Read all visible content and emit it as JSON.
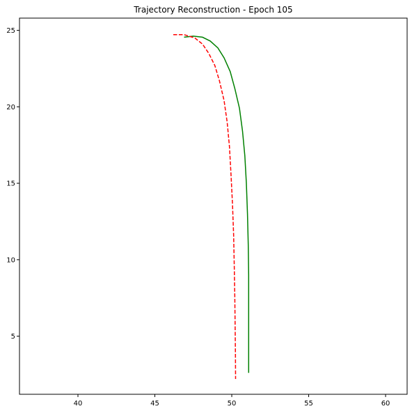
{
  "chart_data": {
    "type": "line",
    "title": "Trajectory Reconstruction - Epoch 105",
    "xlabel": "",
    "ylabel": "",
    "xlim": [
      36.2,
      61.4
    ],
    "ylim": [
      1.2,
      25.8
    ],
    "xticks": [
      40,
      45,
      50,
      55,
      60
    ],
    "yticks": [
      5,
      10,
      15,
      20,
      25
    ],
    "grid": false,
    "series": [
      {
        "color": "#008000",
        "linestyle": "solid",
        "points": [
          [
            46.9,
            24.55
          ],
          [
            47.5,
            24.62
          ],
          [
            48.1,
            24.55
          ],
          [
            48.6,
            24.3
          ],
          [
            49.1,
            23.85
          ],
          [
            49.5,
            23.2
          ],
          [
            49.9,
            22.3
          ],
          [
            50.2,
            21.2
          ],
          [
            50.5,
            19.9
          ],
          [
            50.7,
            18.4
          ],
          [
            50.85,
            16.8
          ],
          [
            50.95,
            15.0
          ],
          [
            51.02,
            13.0
          ],
          [
            51.07,
            11.0
          ],
          [
            51.1,
            9.0
          ],
          [
            51.1,
            7.0
          ],
          [
            51.1,
            5.0
          ],
          [
            51.1,
            3.5
          ],
          [
            51.1,
            2.6
          ]
        ]
      },
      {
        "color": "#ff0000",
        "linestyle": "dashed",
        "points": [
          [
            46.2,
            24.72
          ],
          [
            46.9,
            24.72
          ],
          [
            47.6,
            24.5
          ],
          [
            48.1,
            24.1
          ],
          [
            48.5,
            23.5
          ],
          [
            48.9,
            22.7
          ],
          [
            49.2,
            21.7
          ],
          [
            49.5,
            20.4
          ],
          [
            49.7,
            19.0
          ],
          [
            49.85,
            17.4
          ],
          [
            49.95,
            15.6
          ],
          [
            50.05,
            13.6
          ],
          [
            50.12,
            11.6
          ],
          [
            50.16,
            9.6
          ],
          [
            50.2,
            7.5
          ],
          [
            50.22,
            5.5
          ],
          [
            50.24,
            3.8
          ],
          [
            50.25,
            2.2
          ]
        ]
      }
    ]
  }
}
